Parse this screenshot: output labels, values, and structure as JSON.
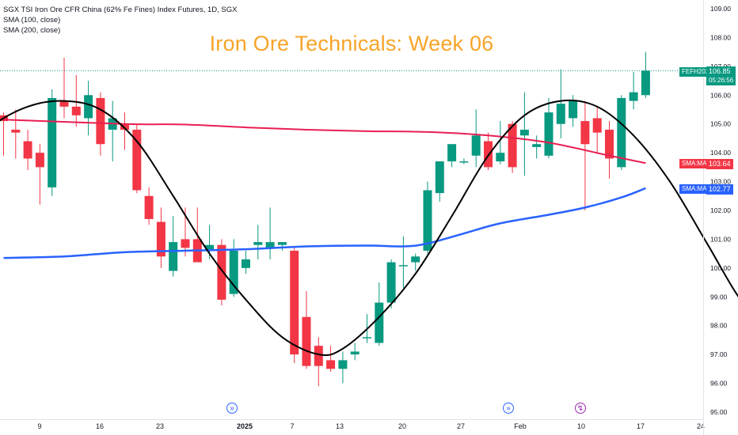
{
  "legend": {
    "symbol": "SGX TSI Iron Ore CFR China (62% Fe Fines) Index Futures, 1D, SGX",
    "sma100": "SMA (100, close)",
    "sma200": "SMA (200, close)"
  },
  "overlay_title": "Iron Ore Technicals: Week 06",
  "price_labels": {
    "symbol_tag": "FEFH2025",
    "last_price": "106.85",
    "countdown": "05:26:56",
    "sma_tag_label": "SMA:MA",
    "sma200_value": "103.64",
    "sma100_value": "102.77"
  },
  "colors": {
    "up": "#089981",
    "down": "#f23645",
    "sma200": "#e91e51",
    "sma100": "#2962ff",
    "cycle": "#000000",
    "title": "#f7a428",
    "last_price_line": "#089981"
  },
  "event_icons": [
    "arrow-forward-icon",
    "arrow-forward-icon",
    "lightning-icon"
  ],
  "chart_data": {
    "type": "candlestick",
    "title": "Iron Ore Technicals: Week 06",
    "y_axis": {
      "ticks": [
        95.0,
        96.0,
        97.0,
        98.0,
        99.0,
        100.0,
        101.0,
        102.0,
        103.0,
        104.0,
        105.0,
        106.0,
        107.0,
        108.0,
        109.0
      ],
      "range": [
        95.0,
        109.4
      ],
      "position": "right"
    },
    "x_axis": {
      "tick_labels": [
        "9",
        "16",
        "23",
        "2025",
        "7",
        "13",
        "20",
        "27",
        "Feb",
        "10",
        "17",
        "24"
      ]
    },
    "grid": false,
    "legend_position": "top-left",
    "candles": [
      {
        "o": 105.3,
        "h": 105.4,
        "l": 103.9,
        "c": 105.1
      },
      {
        "o": 104.8,
        "h": 105.5,
        "l": 103.8,
        "c": 104.7
      },
      {
        "o": 104.4,
        "h": 104.8,
        "l": 103.4,
        "c": 103.8
      },
      {
        "o": 104.0,
        "h": 104.3,
        "l": 102.2,
        "c": 103.5
      },
      {
        "o": 102.8,
        "h": 106.2,
        "l": 102.5,
        "c": 105.9
      },
      {
        "o": 105.8,
        "h": 107.3,
        "l": 105.2,
        "c": 105.6
      },
      {
        "o": 105.6,
        "h": 106.7,
        "l": 104.9,
        "c": 105.3
      },
      {
        "o": 105.2,
        "h": 106.5,
        "l": 104.6,
        "c": 106.0
      },
      {
        "o": 105.9,
        "h": 106.1,
        "l": 103.9,
        "c": 104.3
      },
      {
        "o": 104.8,
        "h": 105.8,
        "l": 103.7,
        "c": 105.2
      },
      {
        "o": 105.0,
        "h": 105.4,
        "l": 104.1,
        "c": 104.8
      },
      {
        "o": 104.8,
        "h": 105.0,
        "l": 102.6,
        "c": 102.7
      },
      {
        "o": 102.5,
        "h": 102.8,
        "l": 101.5,
        "c": 101.7
      },
      {
        "o": 101.6,
        "h": 102.1,
        "l": 100.0,
        "c": 100.4
      },
      {
        "o": 99.9,
        "h": 101.8,
        "l": 99.7,
        "c": 100.9
      },
      {
        "o": 101.0,
        "h": 102.1,
        "l": 100.4,
        "c": 100.7
      },
      {
        "o": 101.0,
        "h": 102.1,
        "l": 100.3,
        "c": 100.2
      },
      {
        "o": 100.6,
        "h": 101.5,
        "l": 100.3,
        "c": 100.8
      },
      {
        "o": 100.8,
        "h": 101.0,
        "l": 98.7,
        "c": 98.9
      },
      {
        "o": 99.1,
        "h": 101.0,
        "l": 99.0,
        "c": 100.6
      },
      {
        "o": 100.0,
        "h": 100.6,
        "l": 99.8,
        "c": 100.3
      },
      {
        "o": 100.8,
        "h": 101.5,
        "l": 100.3,
        "c": 100.9
      },
      {
        "o": 100.7,
        "h": 102.1,
        "l": 100.3,
        "c": 100.9
      },
      {
        "o": 100.8,
        "h": 100.9,
        "l": 100.6,
        "c": 100.9
      },
      {
        "o": 100.6,
        "h": 100.7,
        "l": 96.7,
        "c": 97.0
      },
      {
        "o": 98.3,
        "h": 99.2,
        "l": 96.5,
        "c": 96.6
      },
      {
        "o": 97.3,
        "h": 97.6,
        "l": 95.9,
        "c": 96.6
      },
      {
        "o": 96.8,
        "h": 97.3,
        "l": 96.4,
        "c": 96.5
      },
      {
        "o": 96.5,
        "h": 97.1,
        "l": 96.0,
        "c": 96.8
      },
      {
        "o": 97.0,
        "h": 97.4,
        "l": 96.8,
        "c": 97.1
      },
      {
        "o": 97.6,
        "h": 98.4,
        "l": 97.4,
        "c": 97.6
      },
      {
        "o": 97.4,
        "h": 99.5,
        "l": 97.3,
        "c": 98.8
      },
      {
        "o": 98.8,
        "h": 100.3,
        "l": 98.6,
        "c": 100.2
      },
      {
        "o": 100.1,
        "h": 101.1,
        "l": 99.3,
        "c": 100.1
      },
      {
        "o": 100.2,
        "h": 100.5,
        "l": 99.9,
        "c": 100.4
      },
      {
        "o": 100.6,
        "h": 103.0,
        "l": 100.5,
        "c": 102.7
      },
      {
        "o": 102.6,
        "h": 103.6,
        "l": 102.3,
        "c": 103.7
      },
      {
        "o": 103.7,
        "h": 104.3,
        "l": 103.5,
        "c": 104.3
      },
      {
        "o": 103.7,
        "h": 103.8,
        "l": 103.6,
        "c": 103.7
      },
      {
        "o": 103.9,
        "h": 105.5,
        "l": 103.5,
        "c": 104.6
      },
      {
        "o": 104.4,
        "h": 104.7,
        "l": 103.4,
        "c": 103.5
      },
      {
        "o": 103.7,
        "h": 105.1,
        "l": 103.6,
        "c": 104.0
      },
      {
        "o": 105.0,
        "h": 105.1,
        "l": 103.3,
        "c": 103.5
      },
      {
        "o": 104.6,
        "h": 106.1,
        "l": 103.2,
        "c": 104.8
      },
      {
        "o": 104.2,
        "h": 104.6,
        "l": 103.8,
        "c": 104.3
      },
      {
        "o": 103.9,
        "h": 105.9,
        "l": 103.8,
        "c": 105.4
      },
      {
        "o": 105.0,
        "h": 106.9,
        "l": 104.5,
        "c": 105.7
      },
      {
        "o": 105.2,
        "h": 106.0,
        "l": 104.9,
        "c": 105.8
      },
      {
        "o": 105.1,
        "h": 105.8,
        "l": 102.0,
        "c": 104.3
      },
      {
        "o": 105.2,
        "h": 105.6,
        "l": 104.0,
        "c": 104.7
      },
      {
        "o": 104.8,
        "h": 105.1,
        "l": 103.1,
        "c": 103.8
      },
      {
        "o": 103.5,
        "h": 106.0,
        "l": 103.4,
        "c": 105.9
      },
      {
        "o": 105.8,
        "h": 106.8,
        "l": 105.5,
        "c": 106.1
      },
      {
        "o": 106.0,
        "h": 107.5,
        "l": 105.9,
        "c": 106.85
      }
    ],
    "series": [
      {
        "name": "SMA (200, close)",
        "type": "line",
        "points": [
          [
            0,
            105.15
          ],
          [
            10,
            105.0
          ],
          [
            15,
            104.98
          ],
          [
            20,
            104.88
          ],
          [
            25,
            104.8
          ],
          [
            30,
            104.75
          ],
          [
            35,
            104.72
          ],
          [
            40,
            104.6
          ],
          [
            45,
            104.35
          ],
          [
            50,
            103.9
          ],
          [
            53,
            103.64
          ]
        ]
      },
      {
        "name": "SMA (100, close)",
        "type": "line",
        "points": [
          [
            0,
            100.35
          ],
          [
            5,
            100.4
          ],
          [
            10,
            100.55
          ],
          [
            15,
            100.6
          ],
          [
            20,
            100.65
          ],
          [
            25,
            100.75
          ],
          [
            30,
            100.78
          ],
          [
            33,
            100.75
          ],
          [
            35,
            100.85
          ],
          [
            38,
            101.2
          ],
          [
            41,
            101.55
          ],
          [
            45,
            101.85
          ],
          [
            48,
            102.1
          ],
          [
            51,
            102.45
          ],
          [
            53,
            102.77
          ]
        ]
      },
      {
        "type": "curve",
        "points": [
          [
            -3,
            103.8
          ],
          [
            -1,
            104.9
          ],
          [
            2,
            105.6
          ],
          [
            5,
            105.8
          ],
          [
            8,
            105.5
          ],
          [
            11,
            104.4
          ],
          [
            14,
            102.5
          ],
          [
            17,
            100.5
          ],
          [
            20,
            98.9
          ],
          [
            23,
            97.6
          ],
          [
            26,
            97.0
          ],
          [
            28,
            97.2
          ],
          [
            31,
            98.3
          ],
          [
            34,
            99.8
          ],
          [
            37,
            101.8
          ],
          [
            40,
            103.9
          ],
          [
            43,
            105.3
          ],
          [
            46,
            105.8
          ],
          [
            49,
            105.6
          ],
          [
            52,
            104.6
          ],
          [
            55,
            103.0
          ],
          [
            58,
            100.9
          ],
          [
            61,
            98.8
          ],
          [
            64,
            97.5
          ],
          [
            67,
            97.1
          ],
          [
            68,
            97.2
          ]
        ]
      }
    ]
  }
}
